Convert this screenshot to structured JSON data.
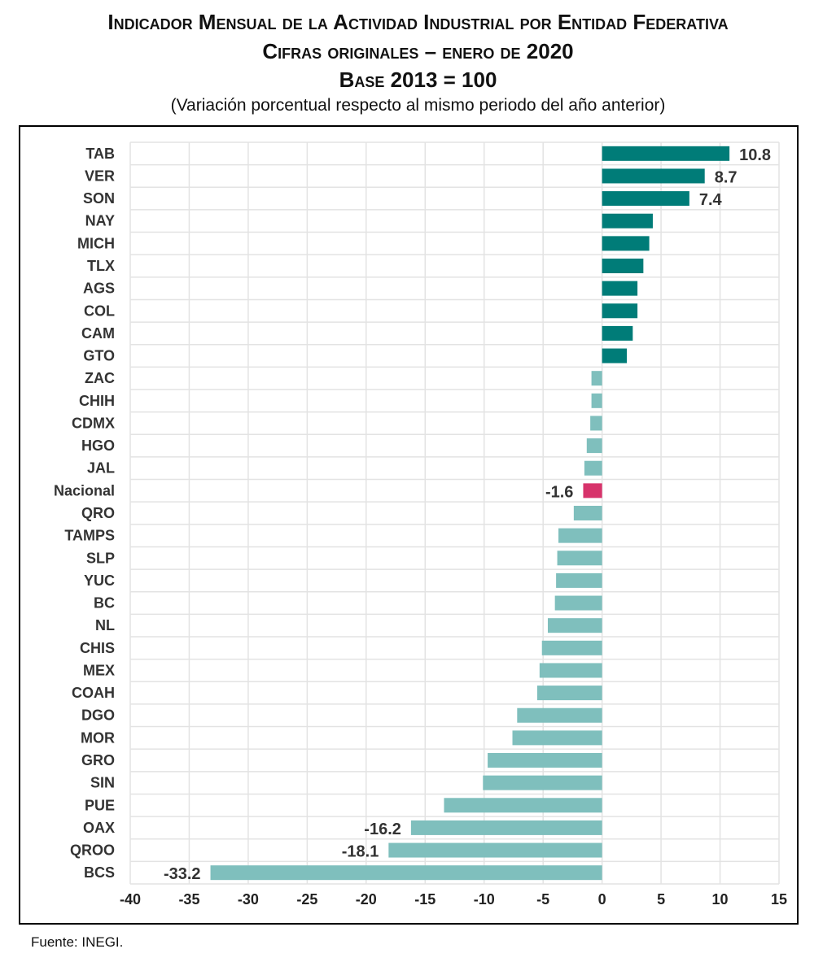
{
  "header": {
    "title": "Indicador Mensual de la Actividad Industrial por Entidad Federativa",
    "line2": "Cifras originales – enero de 2020",
    "line3": "Base 2013 = 100",
    "subtitle": "(Variación porcentual respecto al mismo periodo del año anterior)"
  },
  "footer": {
    "source": "Fuente: INEGI."
  },
  "chart_data": {
    "type": "bar",
    "orientation": "horizontal",
    "categories": [
      "TAB",
      "VER",
      "SON",
      "NAY",
      "MICH",
      "TLX",
      "AGS",
      "COL",
      "CAM",
      "GTO",
      "ZAC",
      "CHIH",
      "CDMX",
      "HGO",
      "JAL",
      "Nacional",
      "QRO",
      "TAMPS",
      "SLP",
      "YUC",
      "BC",
      "NL",
      "CHIS",
      "MEX",
      "COAH",
      "DGO",
      "MOR",
      "GRO",
      "SIN",
      "PUE",
      "OAX",
      "QROO",
      "BCS"
    ],
    "values": [
      10.8,
      8.7,
      7.4,
      4.3,
      4.0,
      3.5,
      3.0,
      3.0,
      2.6,
      2.1,
      -0.9,
      -0.9,
      -1.0,
      -1.3,
      -1.5,
      -1.6,
      -2.4,
      -3.7,
      -3.8,
      -3.9,
      -4.0,
      -4.6,
      -5.1,
      -5.3,
      -5.5,
      -7.2,
      -7.6,
      -9.7,
      -10.1,
      -13.4,
      -16.2,
      -18.1,
      -33.2
    ],
    "data_labels": [
      "10.8",
      "8.7",
      "7.4",
      "",
      "",
      "",
      "",
      "",
      "",
      "",
      "",
      "",
      "",
      "",
      "",
      "-1.6",
      "",
      "",
      "",
      "",
      "",
      "",
      "",
      "",
      "",
      "",
      "",
      "",
      "",
      "",
      "-16.2",
      "-18.1",
      "-33.2"
    ],
    "xlim": [
      -40,
      15
    ],
    "xticks": [
      "-40",
      "-35",
      "-30",
      "-25",
      "-20",
      "-15",
      "-10",
      "-5",
      "0",
      "5",
      "10",
      "15"
    ],
    "grid": true,
    "colors": {
      "positive": "#007C78",
      "negative": "#7FBFBD",
      "national": "#D7336B",
      "grid": "#E3E3E3"
    }
  }
}
